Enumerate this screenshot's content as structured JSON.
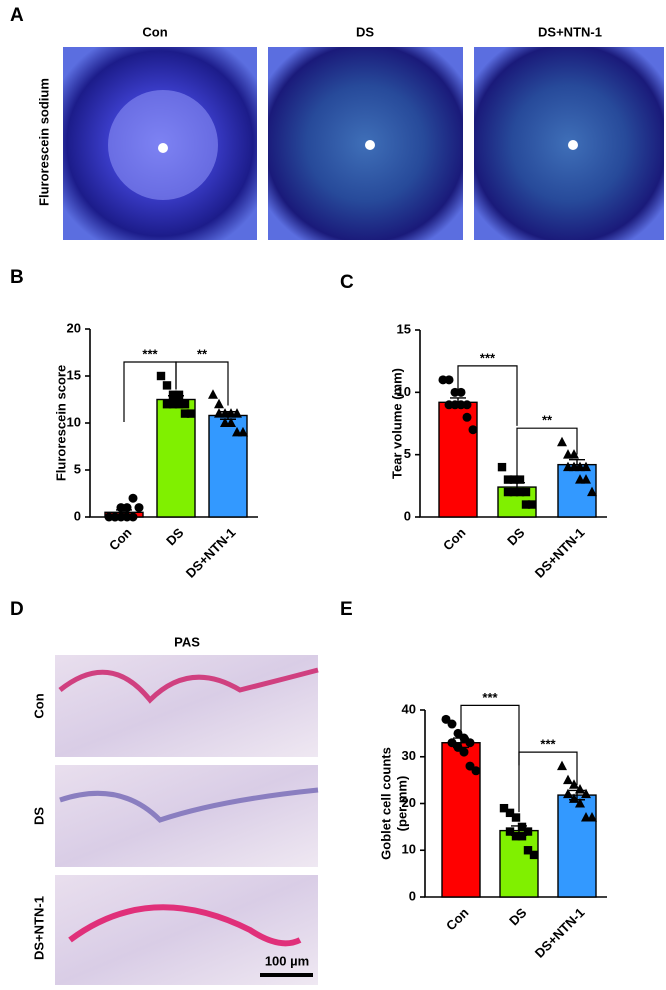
{
  "figure": {
    "panel_labels": [
      "A",
      "B",
      "C",
      "D",
      "E"
    ],
    "panel_a": {
      "column_labels": [
        "Con",
        "DS",
        "DS+NTN-1"
      ],
      "row_label": "Flurorescein sodium"
    },
    "panel_d": {
      "title": "PAS",
      "row_labels": [
        "Con",
        "DS",
        "DS+NTN-1"
      ],
      "scale_bar": "100 µm"
    }
  },
  "chart_data": [
    {
      "type": "bar",
      "ylabel": [
        "Flurorescein score"
      ],
      "categories": [
        "Con",
        "DS",
        "DS+NTN-1"
      ],
      "values": [
        0.5,
        12.5,
        10.8
      ],
      "errors": [
        0.25,
        0.4,
        0.4
      ],
      "colors": [
        "#ff0000",
        "#80f000",
        "#3399ff"
      ],
      "markers": [
        "circle",
        "square",
        "triangle"
      ],
      "points": [
        [
          0,
          0,
          0,
          0,
          0,
          0,
          1,
          1,
          2,
          1
        ],
        [
          15,
          14,
          13,
          13,
          12,
          12,
          12,
          12,
          11,
          11
        ],
        [
          13,
          12,
          11,
          11,
          11,
          11,
          10,
          10,
          9,
          9
        ]
      ],
      "ylim": [
        0,
        20
      ],
      "yticks": [
        0,
        5,
        10,
        15,
        20
      ],
      "comparisons": [
        {
          "label": "***",
          "pair": [
            "Con",
            "DS"
          ]
        },
        {
          "label": "**",
          "pair": [
            "DS",
            "DS+NTN-1"
          ]
        }
      ]
    },
    {
      "type": "bar",
      "ylabel": [
        "Tear volume (mm)"
      ],
      "categories": [
        "Con",
        "DS",
        "DS+NTN-1"
      ],
      "values": [
        9.2,
        2.4,
        4.2
      ],
      "errors": [
        0.35,
        0.35,
        0.4
      ],
      "colors": [
        "#ff0000",
        "#80f000",
        "#3399ff"
      ],
      "markers": [
        "circle",
        "square",
        "triangle"
      ],
      "points": [
        [
          11,
          11,
          10,
          10,
          9,
          9,
          9,
          9,
          8,
          7
        ],
        [
          4,
          3,
          3,
          3,
          2,
          2,
          2,
          2,
          1,
          1
        ],
        [
          6,
          5,
          5,
          4,
          4,
          4,
          4,
          3,
          3,
          2
        ]
      ],
      "ylim": [
        0,
        15
      ],
      "yticks": [
        0,
        5,
        10,
        15
      ],
      "comparisons": [
        {
          "label": "***",
          "pair": [
            "Con",
            "DS"
          ]
        },
        {
          "label": "**",
          "pair": [
            "DS",
            "DS+NTN-1"
          ]
        }
      ]
    },
    {
      "type": "bar",
      "ylabel": [
        "Goblet cell counts",
        "(per mm)"
      ],
      "categories": [
        "Con",
        "DS",
        "DS+NTN-1"
      ],
      "values": [
        33,
        14.2,
        21.8
      ],
      "errors": [
        1,
        1,
        1
      ],
      "colors": [
        "#ff0000",
        "#80f000",
        "#3399ff"
      ],
      "markers": [
        "circle",
        "square",
        "triangle"
      ],
      "points": [
        [
          38,
          37,
          35,
          34,
          33,
          33,
          32,
          31,
          28,
          27
        ],
        [
          19,
          18,
          17,
          15,
          14,
          14,
          13,
          13,
          10,
          9
        ],
        [
          28,
          25,
          24,
          23,
          22,
          22,
          21,
          20,
          17,
          17
        ]
      ],
      "ylim": [
        0,
        40
      ],
      "yticks": [
        0,
        10,
        20,
        30,
        40
      ],
      "comparisons": [
        {
          "label": "***",
          "pair": [
            "Con",
            "DS"
          ]
        },
        {
          "label": "***",
          "pair": [
            "DS",
            "DS+NTN-1"
          ]
        }
      ]
    }
  ]
}
